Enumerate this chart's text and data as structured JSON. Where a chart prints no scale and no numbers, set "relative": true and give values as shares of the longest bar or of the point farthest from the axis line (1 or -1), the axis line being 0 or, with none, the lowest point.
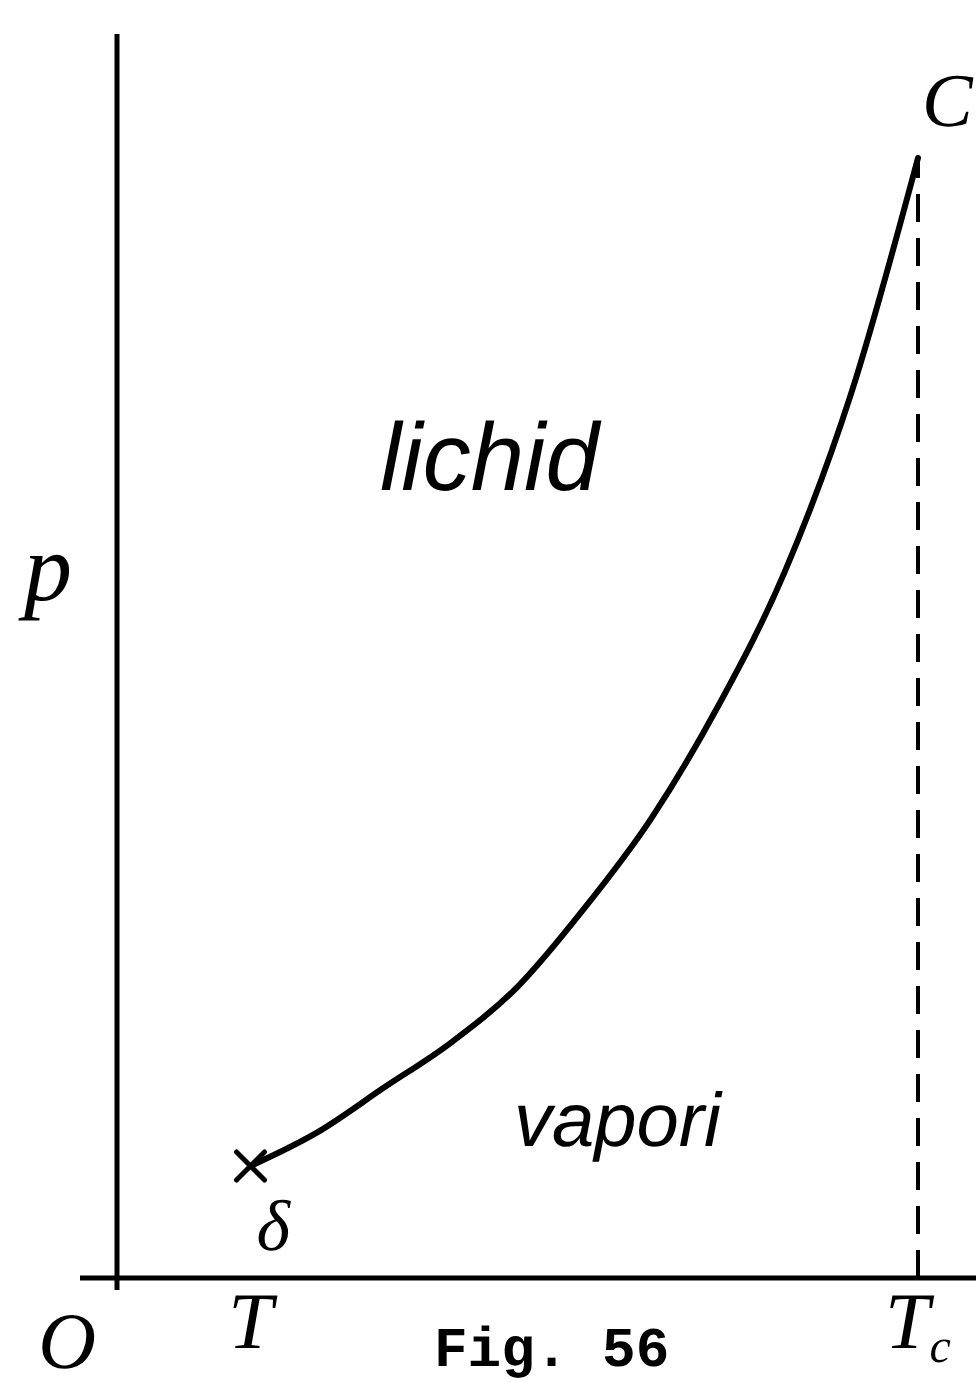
{
  "chart_data": {
    "type": "line",
    "ylabel": "p",
    "relative": true,
    "categories": [
      null,
      null,
      "T",
      null,
      null,
      null,
      null,
      null,
      null,
      null,
      null,
      null,
      "T$_{c}$"
    ],
    "series": [
      {
        "color": "#000000",
        "values": [
          null,
          null,
          0.1,
          0.13,
          0.17,
          0.21,
          0.26,
          0.33,
          0.41,
          0.51,
          0.63,
          0.79,
          1
        ]
      },
      {
        "type": "scatter",
        "color": "#000000",
        "values": [
          null,
          null,
          0.1,
          null,
          null,
          null,
          null,
          null,
          null,
          null,
          null,
          null,
          null
        ],
        "marker": "cross"
      }
    ],
    "ref_lines": [
      {
        "axis": "x",
        "value": "T$_{c}$",
        "color": "#000000",
        "line_style": "dashed"
      }
    ],
    "annotations": [
      "lichid",
      "vapori",
      "Fig. 56",
      "O",
      {
        "text": "C",
        "x": "T$_{c}$",
        "y": 1
      },
      {
        "text": "δ",
        "x": "T",
        "y": 0.1
      }
    ]
  }
}
